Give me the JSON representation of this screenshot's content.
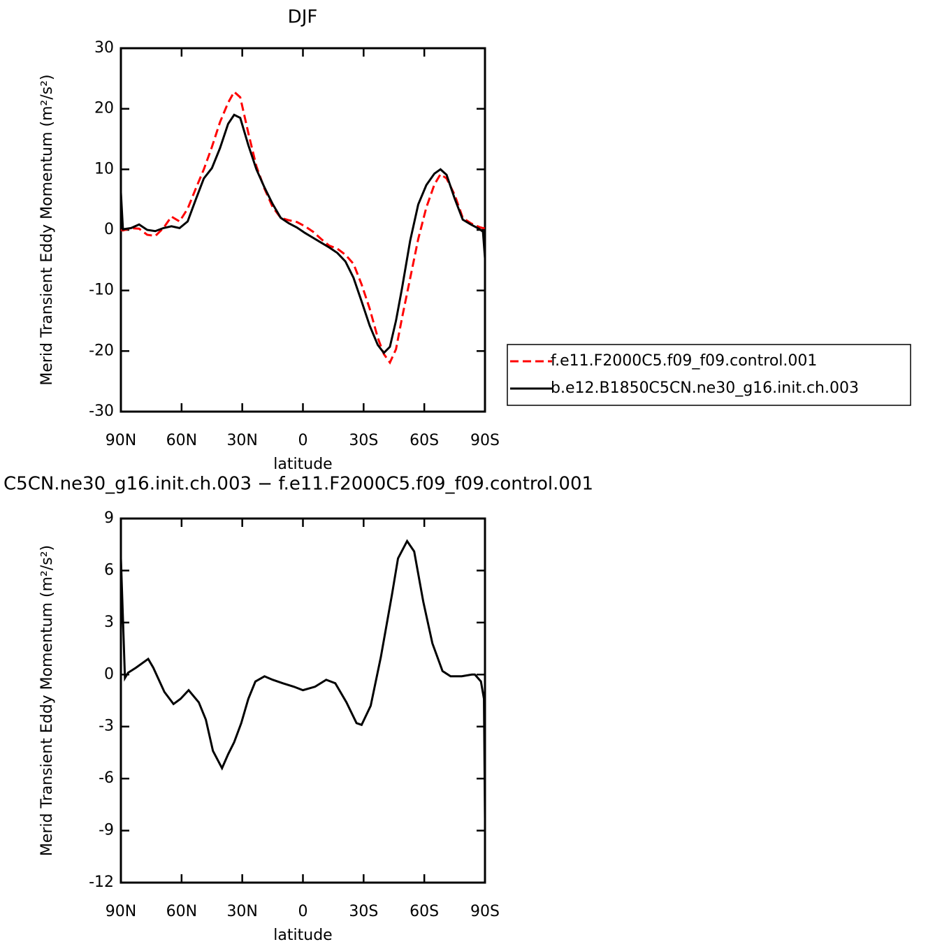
{
  "chart_data": [
    {
      "type": "line",
      "title": "DJF",
      "xlabel": "latitude",
      "ylabel": "Merid Transient Eddy Momentum (m²/s²)",
      "x": [
        90,
        89,
        85,
        81,
        77,
        73,
        69,
        65,
        61,
        57,
        53,
        49,
        45,
        41,
        37,
        34,
        31,
        27,
        23,
        19,
        15,
        11,
        7,
        3,
        -1,
        -5,
        -9,
        -13,
        -17,
        -21,
        -25,
        -29,
        -33,
        -37,
        -40,
        -43,
        -46,
        -49,
        -53,
        -57,
        -61,
        -65,
        -68,
        -71,
        -75,
        -79,
        -83,
        -87,
        -89,
        -90
      ],
      "xlim": [
        90,
        -90
      ],
      "xticks": [
        {
          "value": 90,
          "label": "90N"
        },
        {
          "value": 60,
          "label": "60N"
        },
        {
          "value": 30,
          "label": "30N"
        },
        0,
        {
          "value": -30,
          "label": "30S"
        },
        {
          "value": -60,
          "label": "60S"
        },
        {
          "value": -90,
          "label": "90S"
        }
      ],
      "ylim": [
        -30,
        30
      ],
      "yticks": [
        -30,
        -20,
        -10,
        0,
        10,
        20,
        30
      ],
      "legend": "right",
      "series": [
        {
          "name": "f.e11.F2000C5.f09_f09.control.001",
          "color": "#ff0000",
          "line_style": "dashed",
          "values": [
            0,
            -0.1,
            0.3,
            0.2,
            -0.8,
            -1,
            0.3,
            2.2,
            1.4,
            3.5,
            6.8,
            10,
            13.7,
            17.8,
            21,
            22.8,
            21.9,
            16,
            10.5,
            6.8,
            3.8,
            2,
            1.6,
            1.3,
            0.6,
            -0.3,
            -1.5,
            -2.6,
            -3.1,
            -4.1,
            -5.6,
            -9,
            -13,
            -17.8,
            -20.5,
            -21.9,
            -19.7,
            -14.5,
            -8,
            -1.5,
            3.7,
            7.5,
            9.2,
            8.5,
            5.8,
            2,
            1.1,
            0.5,
            0.3,
            0.3
          ]
        },
        {
          "name": "b.e12.B1850C5CN.ne30_g16.init.ch.003",
          "color": "#000000",
          "line_style": "solid",
          "values": [
            6.2,
            0.1,
            0.3,
            0.9,
            0,
            -0.2,
            0.3,
            0.6,
            0.3,
            1.4,
            5,
            8.5,
            10.2,
            13.5,
            17.5,
            19,
            18.5,
            14,
            10,
            7,
            4.3,
            2,
            1.1,
            0.4,
            -0.5,
            -1.3,
            -2.1,
            -2.9,
            -3.8,
            -5.2,
            -7.9,
            -11.8,
            -15.8,
            -19,
            -20.3,
            -19.3,
            -15,
            -9.6,
            -1.8,
            4.2,
            7.4,
            9.3,
            10,
            9.1,
            5.2,
            1.7,
            0.9,
            0.2,
            -0.3,
            -4.7
          ]
        }
      ]
    },
    {
      "type": "line",
      "title": "C5CN.ne30_g16.init.ch.003 − f.e11.F2000C5.f09_f09.control.001",
      "xlabel": "latitude",
      "ylabel": "Merid Transient Eddy Momentum (m²/s²)",
      "x": [
        90,
        88,
        86.5,
        82.5,
        76.5,
        74,
        68.5,
        64,
        60.5,
        56.5,
        51.5,
        48,
        44.5,
        40,
        37,
        34,
        30.5,
        27,
        23.5,
        19,
        15,
        10,
        4.5,
        0,
        -6,
        -11.5,
        -16,
        -21.5,
        -26.5,
        -29,
        -33.5,
        -38.5,
        -44,
        -47,
        -51.5,
        -55,
        -59.5,
        -64,
        -69,
        -73,
        -78.5,
        -83.5,
        -85,
        -88,
        -89.5,
        -90
      ],
      "xlim": [
        90,
        -90
      ],
      "xticks": [
        {
          "value": 90,
          "label": "90N"
        },
        {
          "value": 60,
          "label": "60N"
        },
        {
          "value": 30,
          "label": "30N"
        },
        0,
        {
          "value": -30,
          "label": "30S"
        },
        {
          "value": -60,
          "label": "60S"
        },
        {
          "value": -90,
          "label": "90S"
        }
      ],
      "ylim": [
        -12,
        9
      ],
      "yticks": [
        -12,
        -9,
        -6,
        -3,
        0,
        3,
        6,
        9
      ],
      "color": "#000000",
      "values": [
        6.7,
        -0.2,
        0.1,
        0.4,
        0.9,
        0.4,
        -1,
        -1.7,
        -1.4,
        -0.9,
        -1.6,
        -2.6,
        -4.4,
        -5.4,
        -4.6,
        -3.9,
        -2.8,
        -1.4,
        -0.4,
        -0.1,
        -0.3,
        -0.5,
        -0.7,
        -0.9,
        -0.7,
        -0.3,
        -0.5,
        -1.6,
        -2.8,
        -2.9,
        -1.8,
        1,
        4.6,
        6.7,
        7.7,
        7.1,
        4.2,
        1.8,
        0.2,
        -0.1,
        -0.1,
        0,
        0,
        -0.4,
        -1.4,
        -8.3
      ]
    }
  ]
}
